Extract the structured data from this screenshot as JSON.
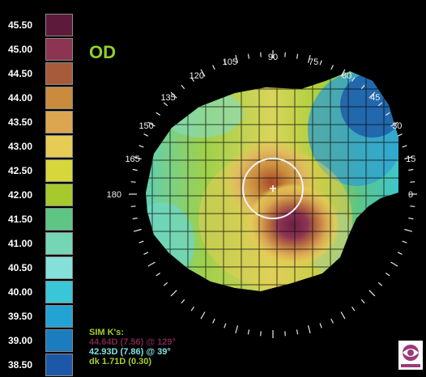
{
  "eye_label": "OD",
  "scale": [
    {
      "label": "45.50",
      "color": "#5e1a3a"
    },
    {
      "label": "45.00",
      "color": "#8c3452"
    },
    {
      "label": "44.50",
      "color": "#a85b3a"
    },
    {
      "label": "44.00",
      "color": "#c98b3c"
    },
    {
      "label": "43.50",
      "color": "#dca650"
    },
    {
      "label": "43.00",
      "color": "#e6cb55"
    },
    {
      "label": "42.50",
      "color": "#d7d63b"
    },
    {
      "label": "42.00",
      "color": "#a6c92c"
    },
    {
      "label": "41.50",
      "color": "#5ec585"
    },
    {
      "label": "41.00",
      "color": "#74d6b5"
    },
    {
      "label": "40.50",
      "color": "#84e0d8"
    },
    {
      "label": "40.00",
      "color": "#39c6d6"
    },
    {
      "label": "39.50",
      "color": "#22a3d4"
    },
    {
      "label": "39.00",
      "color": "#1b7cbf"
    },
    {
      "label": "38.50",
      "color": "#1d58a8"
    }
  ],
  "axis_labels": [
    "180",
    "165",
    "150",
    "135",
    "120",
    "105",
    "90",
    "75",
    "60",
    "45",
    "30",
    "15",
    "0"
  ],
  "sim_k": {
    "title": "SIM K's:",
    "line1": "44.64D (7.56) @ 129°",
    "line2": "42.93D (7.86) @ 39°",
    "line3": "dk  1.71D (0.30)"
  },
  "logo_icon": "eyesys-logo-icon"
}
